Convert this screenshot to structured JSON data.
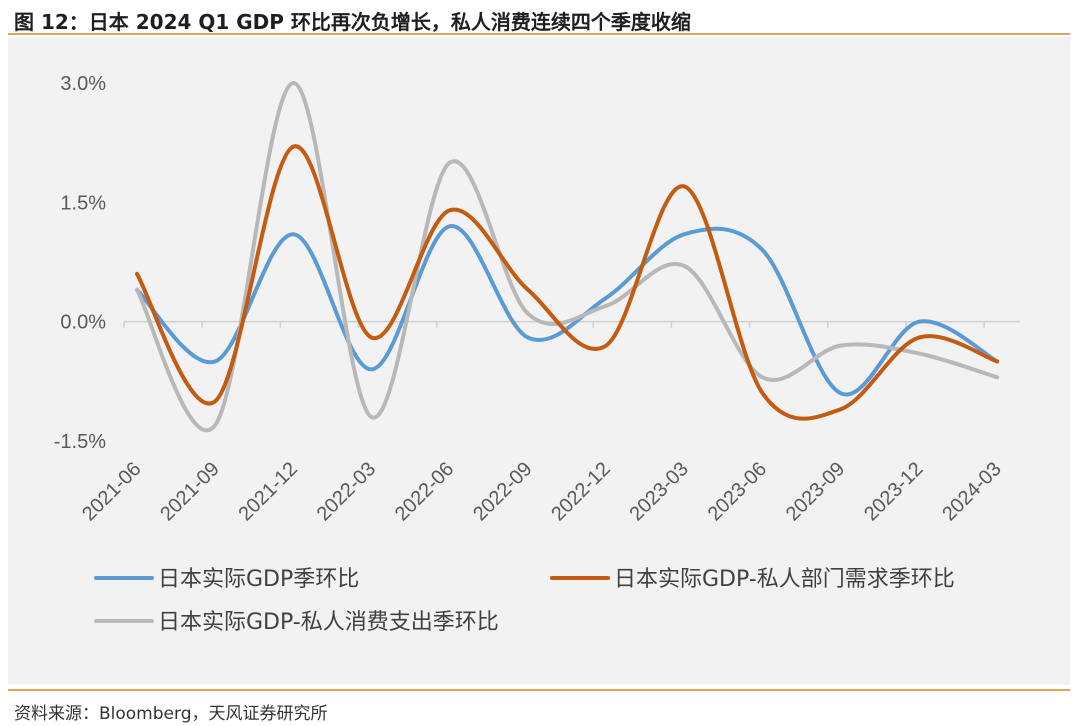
{
  "header": {
    "title": "图 12：日本 2024 Q1 GDP 环比再次负增长，私人消费连续四个季度收缩"
  },
  "footer": {
    "source": "资料来源：Bloomberg，天风证券研究所"
  },
  "chart_data": {
    "type": "line",
    "title": "图 12：日本 2024 Q1 GDP 环比再次负增长，私人消费连续四个季度收缩",
    "xlabel": "",
    "ylabel": "",
    "categories": [
      "2021-06",
      "2021-09",
      "2021-12",
      "2022-03",
      "2022-06",
      "2022-09",
      "2022-12",
      "2023-03",
      "2023-06",
      "2023-09",
      "2023-12",
      "2024-03"
    ],
    "y_ticks": [
      "3.0%",
      "1.5%",
      "0.0%",
      "-1.5%"
    ],
    "ylim": [
      -1.5,
      3.0
    ],
    "grid": false,
    "legend_position": "bottom",
    "series": [
      {
        "name": "日本实际GDP季环比",
        "color": "#5b9bd5",
        "values": [
          0.4,
          -0.5,
          1.1,
          -0.6,
          1.2,
          -0.2,
          0.3,
          1.1,
          0.9,
          -0.9,
          0.0,
          -0.5
        ]
      },
      {
        "name": "日本实际GDP-私人部门需求季环比",
        "color": "#c55a11",
        "values": [
          0.6,
          -1.0,
          2.2,
          -0.2,
          1.4,
          0.4,
          -0.3,
          1.7,
          -0.9,
          -1.1,
          -0.2,
          -0.5
        ]
      },
      {
        "name": "日本实际GDP-私人消费支出季环比",
        "color": "#b8b8b8",
        "values": [
          0.4,
          -1.3,
          3.0,
          -1.2,
          2.0,
          0.1,
          0.2,
          0.7,
          -0.7,
          -0.3,
          -0.4,
          -0.7
        ]
      }
    ]
  }
}
